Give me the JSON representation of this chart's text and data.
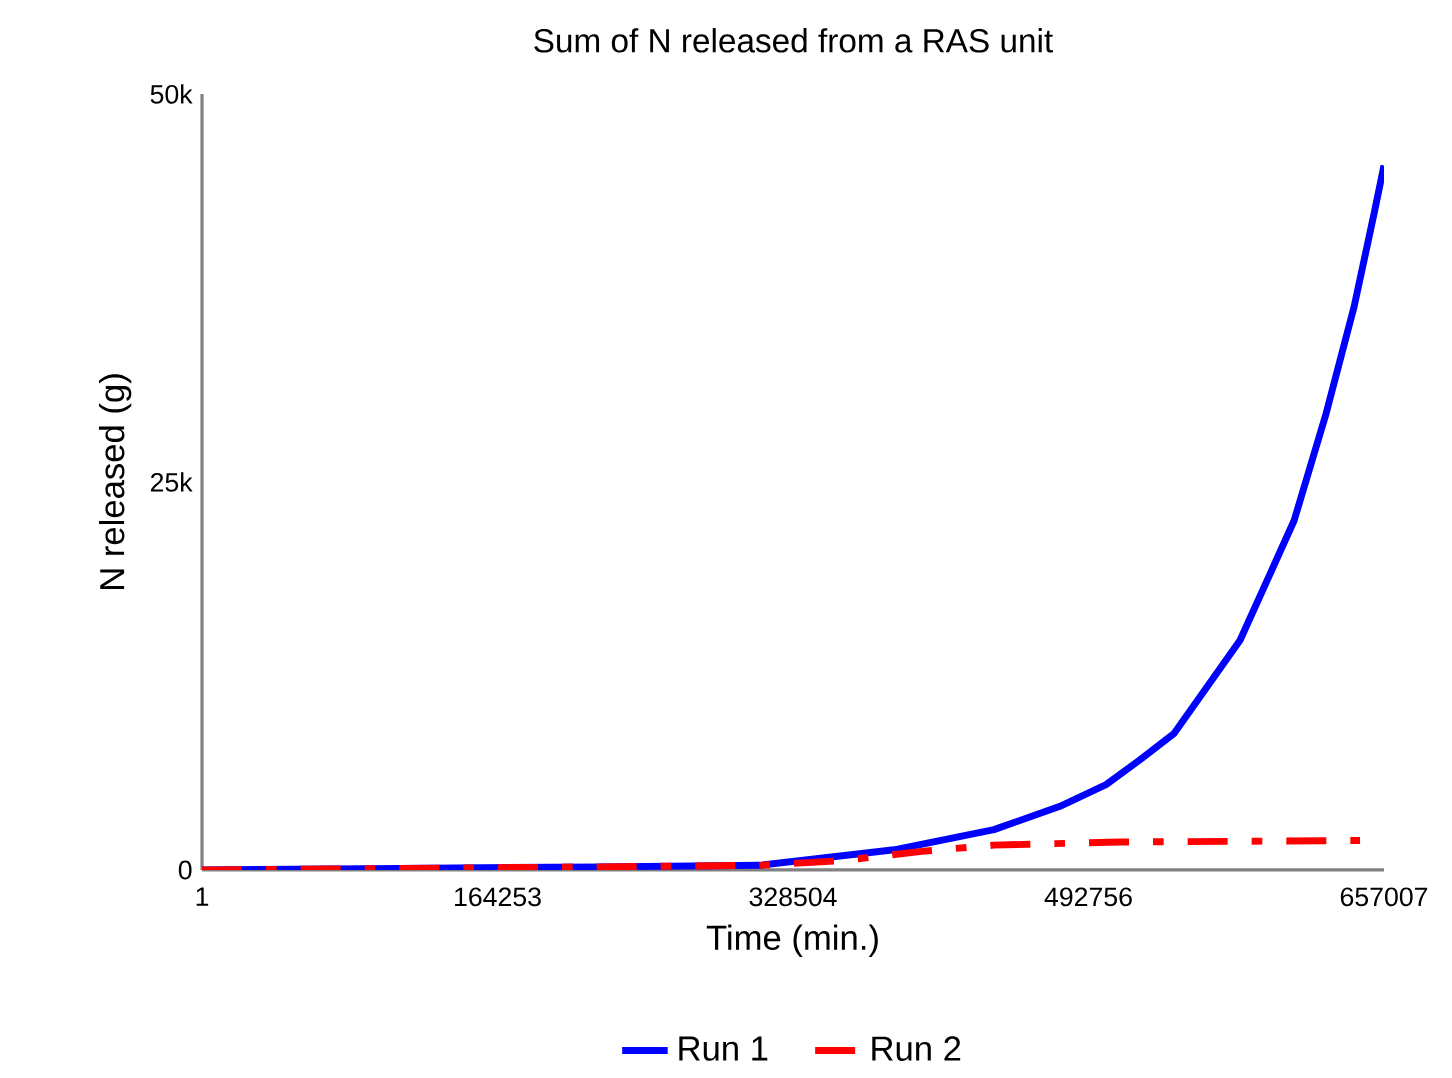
{
  "chart_data": {
    "type": "line",
    "title": "Sum of N released from a RAS unit",
    "xlabel": "Time (min.)",
    "ylabel": "N released (g)",
    "xlim": [
      1,
      657007
    ],
    "xticks": [
      1,
      164253,
      328504,
      492756,
      657007
    ],
    "ylim": [
      0,
      50000
    ],
    "yticks": [
      0,
      {
        "value": 25000,
        "label": "25k"
      },
      {
        "value": 50000,
        "label": "50k"
      }
    ],
    "legend": "bottom",
    "grid": false,
    "marker": "none",
    "series": [
      {
        "name": "Run 1",
        "color": "#0000ff",
        "line_style": "solid",
        "x": [
          1,
          110000,
          221200,
          310200,
          384700,
          440200,
          476900,
          502500,
          521400,
          540300,
          577000,
          607000,
          624800,
          640400,
          651500,
          657007
        ],
        "values": [
          0,
          100,
          200,
          300,
          1300,
          2600,
          4100,
          5500,
          7100,
          8800,
          14800,
          22500,
          29400,
          36300,
          42300,
          45400
        ]
      },
      {
        "name": "Run 2",
        "color": "#ff0000",
        "line_style": "dashdot",
        "x": [
          1,
          221200,
          310200,
          355500,
          400000,
          440200,
          510000,
          643700
        ],
        "values": [
          0,
          200,
          300,
          600,
          1200,
          1600,
          1800,
          1900
        ]
      }
    ]
  }
}
